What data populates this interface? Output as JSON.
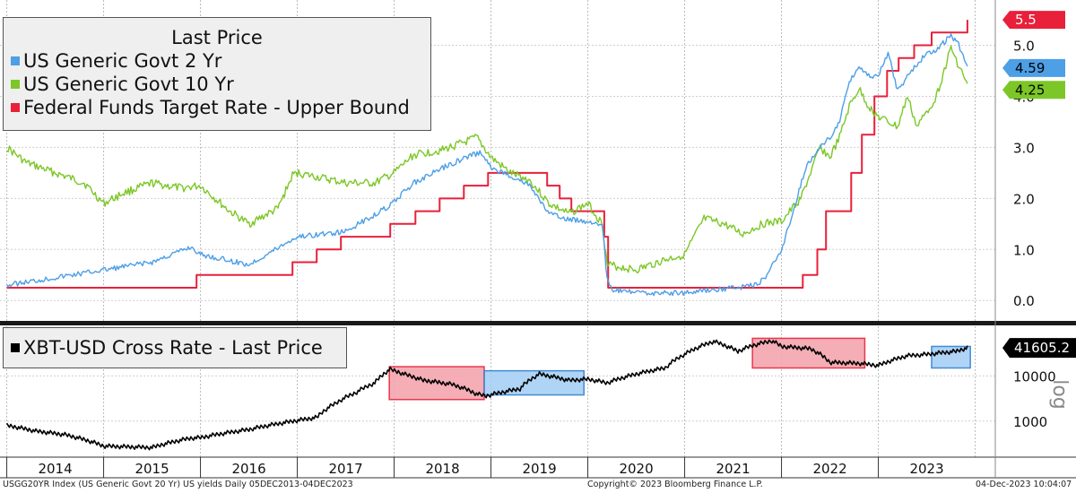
{
  "chart_data": [
    {
      "type": "line",
      "panel": "top",
      "title": "Last Price",
      "ylim": [
        -0.4,
        5.8
      ],
      "yticks": [
        0.0,
        1.0,
        2.0,
        3.0,
        4.0,
        5.0
      ],
      "ytick_labels": [
        "0.0",
        "1.0",
        "2.0",
        "3.0",
        "4.0",
        "5.0"
      ],
      "legend_placement": "top-left",
      "grid": true,
      "series": [
        {
          "name": "US Generic Govt 2 Yr",
          "color": "#4d9fe6",
          "last_label": "4.59",
          "x": [
            2014.0,
            2014.5,
            2015.0,
            2015.5,
            2015.9,
            2016.0,
            2016.5,
            2016.95,
            2017.0,
            2017.5,
            2017.95,
            2018.2,
            2018.5,
            2018.8,
            2018.9,
            2019.0,
            2019.2,
            2019.4,
            2019.6,
            2019.75,
            2020.0,
            2020.15,
            2020.2,
            2020.25,
            2020.5,
            2021.0,
            2021.5,
            2021.75,
            2021.85,
            2022.0,
            2022.1,
            2022.25,
            2022.4,
            2022.5,
            2022.6,
            2022.7,
            2022.8,
            2022.9,
            2023.0,
            2023.1,
            2023.2,
            2023.3,
            2023.5,
            2023.6,
            2023.75,
            2023.83,
            2023.92
          ],
          "y": [
            0.3,
            0.45,
            0.6,
            0.75,
            1.05,
            0.9,
            0.7,
            1.2,
            1.25,
            1.35,
            1.85,
            2.3,
            2.6,
            2.85,
            2.9,
            2.6,
            2.45,
            2.25,
            1.7,
            1.6,
            1.55,
            1.5,
            0.4,
            0.2,
            0.15,
            0.15,
            0.25,
            0.3,
            0.5,
            1.0,
            1.6,
            2.6,
            3.0,
            3.2,
            3.5,
            4.3,
            4.6,
            4.4,
            4.4,
            4.85,
            4.1,
            4.4,
            4.85,
            4.9,
            5.2,
            5.0,
            4.59
          ]
        },
        {
          "name": "US Generic Govt 10 Yr",
          "color": "#7cc727",
          "last_label": "4.25",
          "x": [
            2014.0,
            2014.2,
            2014.5,
            2014.8,
            2015.0,
            2015.2,
            2015.5,
            2015.8,
            2016.0,
            2016.3,
            2016.5,
            2016.8,
            2016.95,
            2017.0,
            2017.5,
            2017.8,
            2018.0,
            2018.2,
            2018.5,
            2018.8,
            2018.85,
            2019.0,
            2019.2,
            2019.4,
            2019.6,
            2019.8,
            2020.0,
            2020.15,
            2020.2,
            2020.5,
            2020.8,
            2021.0,
            2021.2,
            2021.4,
            2021.6,
            2021.8,
            2022.0,
            2022.2,
            2022.4,
            2022.5,
            2022.6,
            2022.7,
            2022.8,
            2022.9,
            2023.0,
            2023.2,
            2023.3,
            2023.4,
            2023.5,
            2023.6,
            2023.75,
            2023.83,
            2023.92
          ],
          "y": [
            3.0,
            2.7,
            2.5,
            2.3,
            1.9,
            2.1,
            2.3,
            2.2,
            2.25,
            1.75,
            1.5,
            1.8,
            2.45,
            2.5,
            2.3,
            2.3,
            2.5,
            2.85,
            2.95,
            3.15,
            3.2,
            2.8,
            2.5,
            2.35,
            1.9,
            1.7,
            1.9,
            1.5,
            0.7,
            0.6,
            0.8,
            0.9,
            1.6,
            1.5,
            1.3,
            1.5,
            1.55,
            2.0,
            3.0,
            2.8,
            3.2,
            3.8,
            4.15,
            3.8,
            3.6,
            3.4,
            4.0,
            3.4,
            3.7,
            4.0,
            4.95,
            4.6,
            4.25
          ]
        },
        {
          "name": "Federal Funds Target Rate - Upper Bound",
          "color": "#e8203a",
          "last_label": "5.5",
          "step": true,
          "x": [
            2014.0,
            2015.96,
            2016.95,
            2017.2,
            2017.45,
            2017.96,
            2018.22,
            2018.47,
            2018.72,
            2018.97,
            2019.58,
            2019.71,
            2019.83,
            2020.17,
            2020.21,
            2022.22,
            2022.37,
            2022.46,
            2022.72,
            2022.83,
            2022.96,
            2023.09,
            2023.21,
            2023.37,
            2023.55,
            2023.92
          ],
          "y": [
            0.25,
            0.5,
            0.75,
            1.0,
            1.25,
            1.5,
            1.75,
            2.0,
            2.25,
            2.5,
            2.25,
            2.0,
            1.75,
            1.25,
            0.25,
            0.5,
            1.0,
            1.75,
            2.5,
            3.25,
            4.0,
            4.5,
            4.75,
            5.0,
            5.25,
            5.5
          ]
        }
      ]
    },
    {
      "type": "line",
      "panel": "bottom",
      "title": "XBT-USD Cross Rate - Last Price",
      "scale": "log",
      "ylim": [
        200,
        120000
      ],
      "yticks": [
        1000,
        10000
      ],
      "ytick_labels": [
        "1000",
        "10000"
      ],
      "side_label": "log",
      "legend_placement": "top-left",
      "series": [
        {
          "name": "XBT-USD Cross Rate - Last Price",
          "color": "#000000",
          "last_label": "41605.2",
          "x": [
            2014.0,
            2014.3,
            2014.6,
            2015.0,
            2015.5,
            2015.9,
            2016.0,
            2016.5,
            2016.9,
            2017.2,
            2017.4,
            2017.6,
            2017.8,
            2017.96,
            2018.1,
            2018.3,
            2018.6,
            2018.85,
            2018.95,
            2019.3,
            2019.5,
            2019.8,
            2020.0,
            2020.2,
            2020.5,
            2020.8,
            2021.0,
            2021.3,
            2021.55,
            2021.7,
            2021.9,
            2022.0,
            2022.3,
            2022.5,
            2022.8,
            2023.0,
            2023.3,
            2023.5,
            2023.8,
            2023.92
          ],
          "y": [
            800,
            600,
            500,
            280,
            260,
            420,
            430,
            650,
            950,
            1200,
            2500,
            4200,
            7000,
            14000,
            11000,
            8000,
            6500,
            4000,
            3600,
            5200,
            11000,
            8000,
            8500,
            7000,
            11000,
            15000,
            30000,
            58000,
            35000,
            47000,
            60000,
            45000,
            40000,
            20000,
            19000,
            17000,
            28000,
            30000,
            35000,
            41605
          ]
        }
      ],
      "highlights": [
        {
          "x0": 2017.95,
          "x1": 2018.93,
          "y0": 3000,
          "y1": 16000,
          "color": "red"
        },
        {
          "x0": 2018.93,
          "x1": 2019.96,
          "y0": 3800,
          "y1": 13000,
          "color": "blue"
        },
        {
          "x0": 2021.7,
          "x1": 2022.86,
          "y0": 15000,
          "y1": 68000,
          "color": "red"
        },
        {
          "x0": 2023.55,
          "x1": 2023.95,
          "y0": 15000,
          "y1": 45000,
          "color": "blue"
        }
      ]
    }
  ],
  "x_axis": {
    "years": [
      "2014",
      "2015",
      "2016",
      "2017",
      "2018",
      "2019",
      "2020",
      "2021",
      "2022",
      "2023"
    ]
  },
  "footer": {
    "left": "USGG20YR Index (US Generic Govt 20 Yr) US yields  Daily 05DEC2013-04DEC2023",
    "center": "Copyright© 2023 Bloomberg Finance L.P.",
    "right": "04-Dec-2023 10:04:07"
  },
  "colors": {
    "two_year": "#4d9fe6",
    "ten_year": "#7cc727",
    "fed_funds": "#e8203a",
    "btc": "#000000",
    "highlight_red": "#f4a6ad",
    "highlight_blue": "#a8d0f5"
  }
}
